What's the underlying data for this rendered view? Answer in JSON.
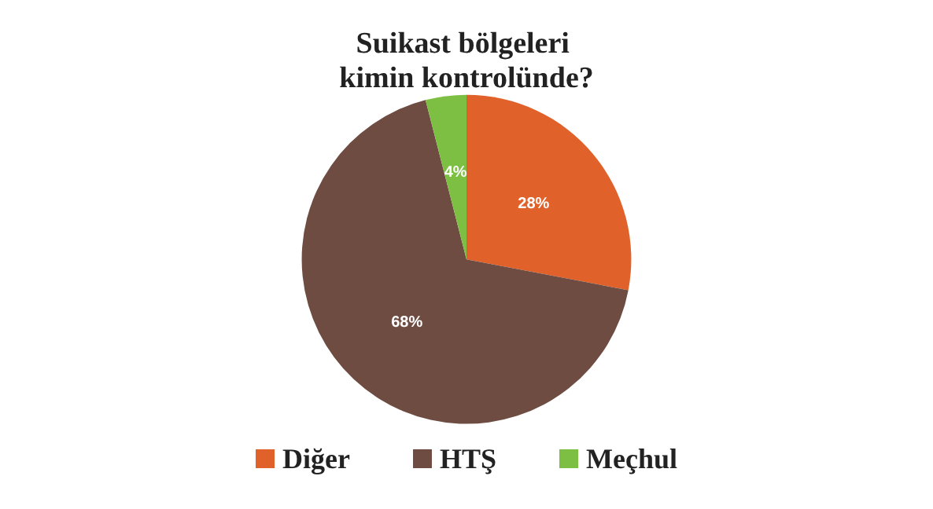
{
  "chart_data": {
    "type": "pie",
    "title": "Suikast bölgeleri kimin kontrolünde?",
    "categories": [
      "Diğer",
      "HTŞ",
      "Meçhul"
    ],
    "values": [
      28,
      68,
      4
    ],
    "colors": [
      "#e0622a",
      "#6e4c42",
      "#7dbf43"
    ],
    "value_labels": [
      "28%",
      "68%",
      "4%"
    ],
    "legend": "bottom"
  }
}
